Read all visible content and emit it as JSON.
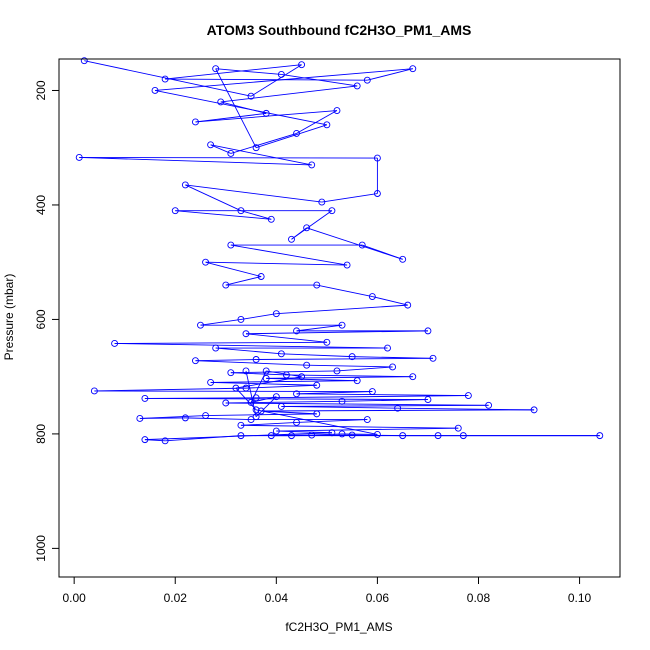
{
  "chart_data": {
    "type": "scatter",
    "title": "ATOM3 Southbound fC2H3O_PM1_AMS",
    "xlabel": "fC2H3O_PM1_AMS",
    "ylabel": "Pressure (mbar)",
    "xlim": [
      -0.003,
      0.108
    ],
    "ylim": [
      1050,
      145
    ],
    "y_reversed": true,
    "x_ticks": [
      0.0,
      0.02,
      0.04,
      0.06,
      0.08,
      0.1
    ],
    "x_tick_labels": [
      "0.00",
      "0.02",
      "0.04",
      "0.06",
      "0.08",
      "0.10"
    ],
    "y_ticks": [
      200,
      400,
      600,
      800,
      1000
    ],
    "y_tick_labels": [
      "200",
      "400",
      "600",
      "800",
      "1000"
    ],
    "series_color": "#0000ff",
    "marker": "open-circle",
    "connected": true,
    "grid": false,
    "series": [
      {
        "points": [
          [
            0.002,
            148
          ],
          [
            0.035,
            210
          ],
          [
            0.045,
            155
          ],
          [
            0.018,
            180
          ],
          [
            0.058,
            182
          ],
          [
            0.067,
            162
          ],
          [
            0.016,
            200
          ],
          [
            0.05,
            260
          ],
          [
            0.036,
            300
          ],
          [
            0.028,
            162
          ],
          [
            0.041,
            172
          ],
          [
            0.056,
            192
          ],
          [
            0.029,
            220
          ],
          [
            0.038,
            240
          ],
          [
            0.024,
            255
          ],
          [
            0.052,
            235
          ],
          [
            0.044,
            275
          ],
          [
            0.031,
            310
          ],
          [
            0.027,
            295
          ],
          [
            0.047,
            330
          ],
          [
            0.001,
            317
          ],
          [
            0.06,
            318
          ],
          [
            0.06,
            380
          ],
          [
            0.049,
            395
          ],
          [
            0.022,
            365
          ],
          [
            0.033,
            410
          ],
          [
            0.039,
            425
          ],
          [
            0.02,
            410
          ],
          [
            0.051,
            410
          ],
          [
            0.043,
            460
          ],
          [
            0.046,
            440
          ],
          [
            0.065,
            495
          ],
          [
            0.057,
            470
          ],
          [
            0.031,
            470
          ],
          [
            0.054,
            505
          ],
          [
            0.026,
            500
          ],
          [
            0.037,
            525
          ],
          [
            0.03,
            540
          ],
          [
            0.048,
            540
          ],
          [
            0.059,
            560
          ],
          [
            0.066,
            575
          ],
          [
            0.04,
            590
          ],
          [
            0.033,
            600
          ],
          [
            0.025,
            610
          ],
          [
            0.053,
            610
          ],
          [
            0.044,
            620
          ],
          [
            0.07,
            620
          ],
          [
            0.034,
            625
          ],
          [
            0.05,
            640
          ],
          [
            0.008,
            642
          ],
          [
            0.062,
            650
          ],
          [
            0.028,
            650
          ],
          [
            0.041,
            660
          ],
          [
            0.055,
            665
          ],
          [
            0.071,
            668
          ],
          [
            0.036,
            670
          ],
          [
            0.024,
            672
          ],
          [
            0.046,
            680
          ],
          [
            0.063,
            683
          ],
          [
            0.052,
            690
          ],
          [
            0.031,
            693
          ],
          [
            0.042,
            697
          ],
          [
            0.067,
            700
          ],
          [
            0.038,
            703
          ],
          [
            0.056,
            707
          ],
          [
            0.027,
            710
          ],
          [
            0.048,
            715
          ],
          [
            0.034,
            720
          ],
          [
            0.004,
            725
          ],
          [
            0.059,
            726
          ],
          [
            0.044,
            730
          ],
          [
            0.078,
            733
          ],
          [
            0.036,
            737
          ],
          [
            0.014,
            738
          ],
          [
            0.07,
            740
          ],
          [
            0.053,
            743
          ],
          [
            0.03,
            746
          ],
          [
            0.082,
            750
          ],
          [
            0.041,
            752
          ],
          [
            0.064,
            755
          ],
          [
            0.091,
            758
          ],
          [
            0.037,
            760
          ],
          [
            0.048,
            765
          ],
          [
            0.026,
            768
          ],
          [
            0.013,
            773
          ],
          [
            0.022,
            772
          ],
          [
            0.035,
            775
          ],
          [
            0.058,
            775
          ],
          [
            0.044,
            780
          ],
          [
            0.033,
            785
          ],
          [
            0.076,
            790
          ],
          [
            0.04,
            795
          ],
          [
            0.051,
            798
          ],
          [
            0.014,
            810
          ],
          [
            0.018,
            812
          ],
          [
            0.033,
            803
          ],
          [
            0.043,
            803
          ],
          [
            0.055,
            802
          ],
          [
            0.065,
            803
          ],
          [
            0.072,
            803
          ],
          [
            0.077,
            803
          ],
          [
            0.104,
            803
          ],
          [
            0.039,
            803
          ],
          [
            0.047,
            802
          ],
          [
            0.053,
            800
          ],
          [
            0.06,
            801
          ],
          [
            0.036,
            758
          ],
          [
            0.032,
            720
          ],
          [
            0.045,
            700
          ],
          [
            0.038,
            690
          ],
          [
            0.035,
            745
          ],
          [
            0.04,
            735
          ],
          [
            0.036,
            770
          ],
          [
            0.034,
            690
          ]
        ]
      }
    ]
  }
}
